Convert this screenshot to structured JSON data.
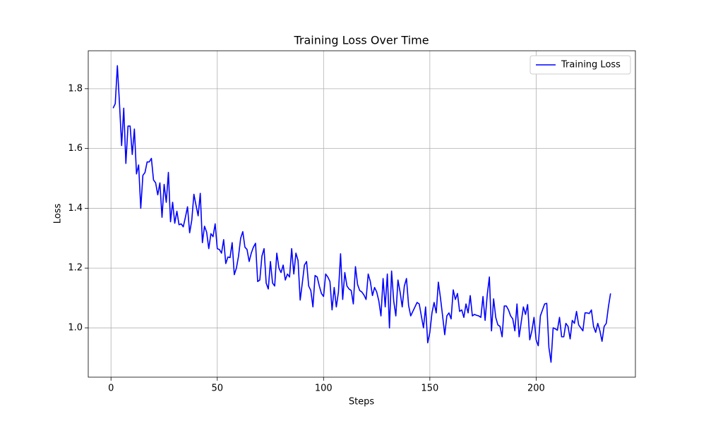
{
  "chart_data": {
    "type": "line",
    "title": "Training Loss Over Time",
    "xlabel": "Steps",
    "ylabel": "Loss",
    "x": [
      1,
      2,
      3,
      4,
      5,
      6,
      7,
      8,
      9,
      10,
      11,
      12,
      13,
      14,
      15,
      16,
      17,
      18,
      19,
      20,
      21,
      22,
      23,
      24,
      25,
      26,
      27,
      28,
      29,
      30,
      31,
      32,
      33,
      34,
      35,
      36,
      37,
      38,
      39,
      40,
      41,
      42,
      43,
      44,
      45,
      46,
      47,
      48,
      49,
      50,
      51,
      52,
      53,
      54,
      55,
      56,
      57,
      58,
      59,
      60,
      61,
      62,
      63,
      64,
      65,
      66,
      67,
      68,
      69,
      70,
      71,
      72,
      73,
      74,
      75,
      76,
      77,
      78,
      79,
      80,
      81,
      82,
      83,
      84,
      85,
      86,
      87,
      88,
      89,
      90,
      91,
      92,
      93,
      94,
      95,
      96,
      97,
      98,
      99,
      100,
      101,
      102,
      103,
      104,
      105,
      106,
      107,
      108,
      109,
      110,
      111,
      112,
      113,
      114,
      115,
      116,
      117,
      118,
      119,
      120,
      121,
      122,
      123,
      124,
      125,
      126,
      127,
      128,
      129,
      130,
      131,
      132,
      133,
      134,
      135,
      136,
      137,
      138,
      139,
      140,
      141,
      142,
      143,
      144,
      145,
      146,
      147,
      148,
      149,
      150,
      151,
      152,
      153,
      154,
      155,
      156,
      157,
      158,
      159,
      160,
      161,
      162,
      163,
      164,
      165,
      166,
      167,
      168,
      169,
      170,
      171,
      172,
      173,
      174,
      175,
      176,
      177,
      178,
      179,
      180,
      181,
      182,
      183,
      184,
      185,
      186,
      187,
      188,
      189,
      190,
      191,
      192,
      193,
      194,
      195,
      196,
      197,
      198,
      199,
      200,
      201,
      202,
      203,
      204,
      205,
      206,
      207,
      208,
      209,
      210,
      211,
      212,
      213,
      214,
      215,
      216,
      217,
      218,
      219,
      220,
      221,
      222,
      223,
      224,
      225,
      226,
      227,
      228,
      229,
      230,
      231,
      232,
      233,
      234,
      235
    ],
    "series": [
      {
        "name": "Training Loss",
        "color": "#0000ff",
        "values": [
          1.735,
          1.75,
          1.877,
          1.75,
          1.61,
          1.735,
          1.55,
          1.675,
          1.675,
          1.58,
          1.665,
          1.515,
          1.545,
          1.4,
          1.51,
          1.52,
          1.555,
          1.555,
          1.567,
          1.495,
          1.485,
          1.445,
          1.485,
          1.37,
          1.48,
          1.42,
          1.52,
          1.355,
          1.42,
          1.35,
          1.39,
          1.345,
          1.348,
          1.338,
          1.37,
          1.405,
          1.318,
          1.36,
          1.447,
          1.41,
          1.375,
          1.45,
          1.285,
          1.34,
          1.32,
          1.265,
          1.315,
          1.305,
          1.348,
          1.265,
          1.262,
          1.25,
          1.295,
          1.215,
          1.237,
          1.235,
          1.285,
          1.178,
          1.2,
          1.24,
          1.3,
          1.322,
          1.27,
          1.262,
          1.222,
          1.25,
          1.27,
          1.283,
          1.155,
          1.16,
          1.24,
          1.265,
          1.15,
          1.13,
          1.222,
          1.15,
          1.14,
          1.25,
          1.2,
          1.185,
          1.21,
          1.16,
          1.18,
          1.17,
          1.265,
          1.18,
          1.25,
          1.225,
          1.093,
          1.15,
          1.21,
          1.222,
          1.14,
          1.125,
          1.07,
          1.175,
          1.17,
          1.14,
          1.115,
          1.105,
          1.18,
          1.17,
          1.155,
          1.06,
          1.135,
          1.07,
          1.12,
          1.248,
          1.095,
          1.185,
          1.14,
          1.13,
          1.125,
          1.08,
          1.205,
          1.145,
          1.125,
          1.12,
          1.11,
          1.095,
          1.18,
          1.155,
          1.108,
          1.135,
          1.12,
          1.09,
          1.04,
          1.165,
          1.07,
          1.18,
          1.0,
          1.19,
          1.09,
          1.04,
          1.16,
          1.12,
          1.07,
          1.14,
          1.165,
          1.075,
          1.04,
          1.055,
          1.07,
          1.085,
          1.08,
          1.04,
          1.0,
          1.07,
          0.95,
          0.985,
          1.05,
          1.085,
          1.05,
          1.153,
          1.1,
          1.04,
          0.977,
          1.04,
          1.05,
          1.03,
          1.127,
          1.095,
          1.115,
          1.055,
          1.06,
          1.035,
          1.08,
          1.05,
          1.108,
          1.04,
          1.045,
          1.042,
          1.04,
          1.035,
          1.105,
          1.025,
          1.11,
          1.17,
          0.99,
          1.097,
          1.035,
          1.01,
          1.005,
          0.97,
          1.073,
          1.073,
          1.06,
          1.04,
          1.03,
          0.99,
          1.08,
          0.97,
          1.02,
          1.07,
          1.045,
          1.078,
          0.96,
          0.99,
          1.035,
          0.96,
          0.94,
          1.04,
          1.06,
          1.08,
          1.082,
          0.935,
          0.885,
          1.0,
          0.997,
          0.992,
          1.035,
          0.97,
          0.97,
          1.015,
          1.005,
          0.963,
          1.025,
          1.015,
          1.055,
          1.01,
          1.0,
          0.99,
          1.05,
          1.05,
          1.048,
          1.06,
          1.005,
          0.985,
          1.015,
          0.99,
          0.955,
          1.005,
          1.015,
          1.07,
          1.115
        ]
      }
    ],
    "xlim": [
      -10.7,
      246.7
    ],
    "ylim": [
      0.835,
      1.927
    ],
    "xticks": [
      0,
      50,
      100,
      150,
      200
    ],
    "yticks": [
      {
        "value": 1.0,
        "label": "1.0"
      },
      {
        "value": 1.2,
        "label": "1.2"
      },
      {
        "value": 1.4,
        "label": "1.4"
      },
      {
        "value": 1.6,
        "label": "1.6"
      },
      {
        "value": 1.8,
        "label": "1.8"
      }
    ],
    "grid": true,
    "legend": "upper right"
  }
}
